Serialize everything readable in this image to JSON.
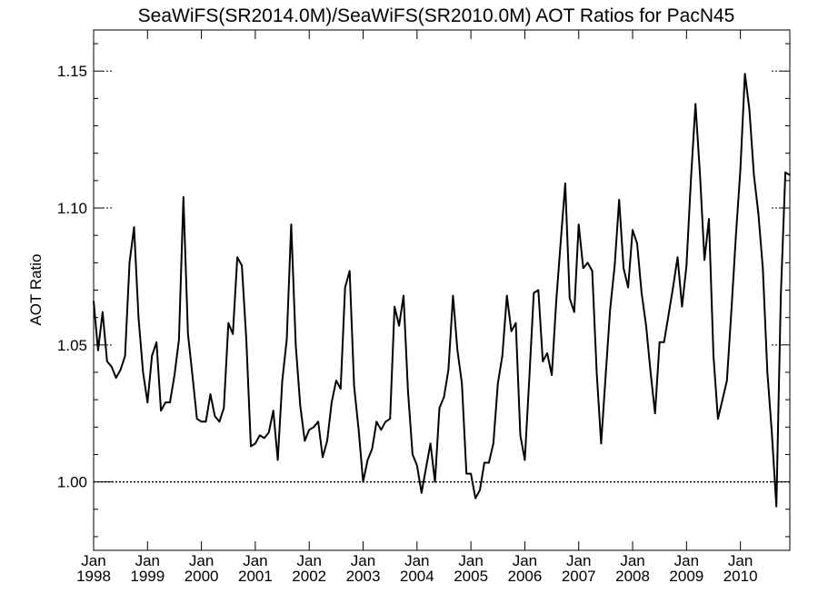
{
  "chart_data": {
    "type": "line",
    "title": "SeaWiFS(SR2014.0M)/SeaWiFS(SR2010.0M)  AOT Ratios for PacN45",
    "xlabel": "",
    "ylabel": "AOT Ratio",
    "xlim": [
      "1998-01",
      "2010-12"
    ],
    "ylim": [
      0.975,
      1.165
    ],
    "yticks": [
      "1.00",
      "1.05",
      "1.10",
      "1.15"
    ],
    "ytick_values": [
      1.0,
      1.05,
      1.1,
      1.15
    ],
    "xticks": [
      {
        "month": "Jan",
        "year": "1998",
        "date": "1998-01"
      },
      {
        "month": "Jan",
        "year": "1999",
        "date": "1999-01"
      },
      {
        "month": "Jan",
        "year": "2000",
        "date": "2000-01"
      },
      {
        "month": "Jan",
        "year": "2001",
        "date": "2001-01"
      },
      {
        "month": "Jan",
        "year": "2002",
        "date": "2002-01"
      },
      {
        "month": "Jan",
        "year": "2003",
        "date": "2003-01"
      },
      {
        "month": "Jan",
        "year": "2004",
        "date": "2004-01"
      },
      {
        "month": "Jan",
        "year": "2005",
        "date": "2005-01"
      },
      {
        "month": "Jan",
        "year": "2006",
        "date": "2006-01"
      },
      {
        "month": "Jan",
        "year": "2007",
        "date": "2007-01"
      },
      {
        "month": "Jan",
        "year": "2008",
        "date": "2008-01"
      },
      {
        "month": "Jan",
        "year": "2009",
        "date": "2009-01"
      },
      {
        "month": "Jan",
        "year": "2010",
        "date": "2010-01"
      }
    ],
    "reference_line": 1.0,
    "grid": false,
    "series": [
      {
        "x": [
          "1998-01",
          "1998-02",
          "1998-03",
          "1998-04",
          "1998-05",
          "1998-06",
          "1998-07",
          "1998-08",
          "1998-09",
          "1998-10",
          "1998-11",
          "1998-12",
          "1999-01",
          "1999-02",
          "1999-03",
          "1999-04",
          "1999-05",
          "1999-06",
          "1999-07",
          "1999-08",
          "1999-09",
          "1999-10",
          "1999-11",
          "1999-12",
          "2000-01",
          "2000-02",
          "2000-03",
          "2000-04",
          "2000-05",
          "2000-06",
          "2000-07",
          "2000-08",
          "2000-09",
          "2000-10",
          "2000-11",
          "2000-12",
          "2001-01",
          "2001-02",
          "2001-03",
          "2001-04",
          "2001-05",
          "2001-06",
          "2001-07",
          "2001-08",
          "2001-09",
          "2001-10",
          "2001-11",
          "2001-12",
          "2002-01",
          "2002-02",
          "2002-03",
          "2002-04",
          "2002-05",
          "2002-06",
          "2002-07",
          "2002-08",
          "2002-09",
          "2002-10",
          "2002-11",
          "2002-12",
          "2003-01",
          "2003-02",
          "2003-03",
          "2003-04",
          "2003-05",
          "2003-06",
          "2003-07",
          "2003-08",
          "2003-09",
          "2003-10",
          "2003-11",
          "2003-12",
          "2004-01",
          "2004-02",
          "2004-03",
          "2004-04",
          "2004-05",
          "2004-06",
          "2004-07",
          "2004-08",
          "2004-09",
          "2004-10",
          "2004-11",
          "2004-12",
          "2005-01",
          "2005-02",
          "2005-03",
          "2005-04",
          "2005-05",
          "2005-06",
          "2005-07",
          "2005-08",
          "2005-09",
          "2005-10",
          "2005-11",
          "2005-12",
          "2006-01",
          "2006-02",
          "2006-03",
          "2006-04",
          "2006-05",
          "2006-06",
          "2006-07",
          "2006-08",
          "2006-09",
          "2006-10",
          "2006-11",
          "2006-12",
          "2007-01",
          "2007-02",
          "2007-03",
          "2007-04",
          "2007-05",
          "2007-06",
          "2007-07",
          "2007-08",
          "2007-09",
          "2007-10",
          "2007-11",
          "2007-12",
          "2008-01",
          "2008-02",
          "2008-03",
          "2008-04",
          "2008-05",
          "2008-06",
          "2008-07",
          "2008-08",
          "2008-09",
          "2008-10",
          "2008-11",
          "2008-12",
          "2009-01",
          "2009-02",
          "2009-03",
          "2009-04",
          "2009-05",
          "2009-06",
          "2009-07",
          "2009-08",
          "2009-09",
          "2009-10",
          "2009-11",
          "2009-12",
          "2010-01",
          "2010-02",
          "2010-03",
          "2010-04",
          "2010-05",
          "2010-06",
          "2010-07",
          "2010-08",
          "2010-09",
          "2010-10",
          "2010-11",
          "2010-12"
        ],
        "values": [
          1.066,
          1.048,
          1.062,
          1.044,
          1.042,
          1.038,
          1.041,
          1.046,
          1.08,
          1.093,
          1.06,
          1.04,
          1.029,
          1.046,
          1.051,
          1.026,
          1.029,
          1.029,
          1.039,
          1.052,
          1.104,
          1.054,
          1.039,
          1.023,
          1.022,
          1.022,
          1.032,
          1.024,
          1.022,
          1.027,
          1.058,
          1.054,
          1.082,
          1.079,
          1.052,
          1.013,
          1.014,
          1.017,
          1.016,
          1.018,
          1.026,
          1.008,
          1.037,
          1.052,
          1.094,
          1.05,
          1.028,
          1.015,
          1.019,
          1.02,
          1.022,
          1.009,
          1.015,
          1.029,
          1.037,
          1.034,
          1.071,
          1.077,
          1.035,
          1.019,
          1.0,
          1.008,
          1.012,
          1.022,
          1.019,
          1.022,
          1.023,
          1.064,
          1.057,
          1.068,
          1.033,
          1.01,
          1.006,
          0.996,
          1.005,
          1.014,
          1.0,
          1.027,
          1.031,
          1.041,
          1.068,
          1.048,
          1.036,
          1.003,
          1.003,
          0.994,
          0.997,
          1.007,
          1.007,
          1.014,
          1.036,
          1.046,
          1.068,
          1.055,
          1.058,
          1.017,
          1.008,
          1.038,
          1.069,
          1.07,
          1.044,
          1.047,
          1.039,
          1.066,
          1.088,
          1.109,
          1.067,
          1.062,
          1.094,
          1.078,
          1.08,
          1.077,
          1.04,
          1.014,
          1.039,
          1.063,
          1.079,
          1.103,
          1.078,
          1.071,
          1.092,
          1.087,
          1.069,
          1.057,
          1.04,
          1.025,
          1.051,
          1.051,
          1.061,
          1.071,
          1.082,
          1.064,
          1.079,
          1.111,
          1.138,
          1.112,
          1.081,
          1.096,
          1.046,
          1.023,
          1.03,
          1.037,
          1.063,
          1.09,
          1.114,
          1.149,
          1.136,
          1.112,
          1.098,
          1.078,
          1.04,
          1.018,
          0.991,
          1.068,
          1.113,
          1.112
        ]
      }
    ]
  }
}
